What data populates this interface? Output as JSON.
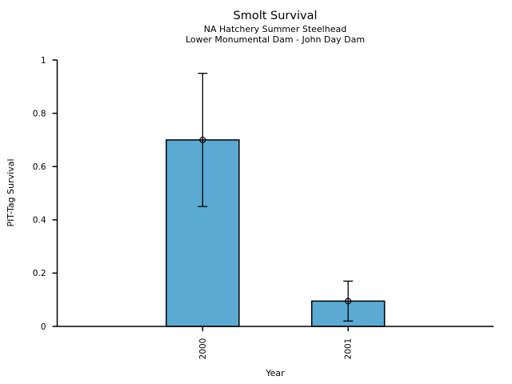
{
  "page": {
    "background": "#ffffff"
  },
  "chart_data": {
    "type": "bar",
    "title": "Smolt Survival",
    "subtitle1": "NA Hatchery Summer Steelhead",
    "subtitle2": "Lower Monumental Dam - John Day Dam",
    "xlabel": "Year",
    "ylabel": "PIT-Tag Survival",
    "categories": [
      "2000",
      "2001"
    ],
    "values": [
      0.7,
      0.095
    ],
    "error_bars": [
      {
        "low": 0.45,
        "high": 0.95
      },
      {
        "low": 0.02,
        "high": 0.17
      }
    ],
    "ylim": [
      0,
      1
    ],
    "yticks": [
      0,
      0.2,
      0.4,
      0.6,
      0.8,
      1
    ],
    "ytick_labels": [
      "0",
      "0.2",
      "0.4",
      "0.6",
      "0.8",
      "1"
    ],
    "x_tick_rotation_deg": -90,
    "bar_color": "#5AAAD4",
    "bar_edge_color": "#000000",
    "error_bar_color": "#000000",
    "marker": "open-circle",
    "grid": false,
    "legend": null
  }
}
